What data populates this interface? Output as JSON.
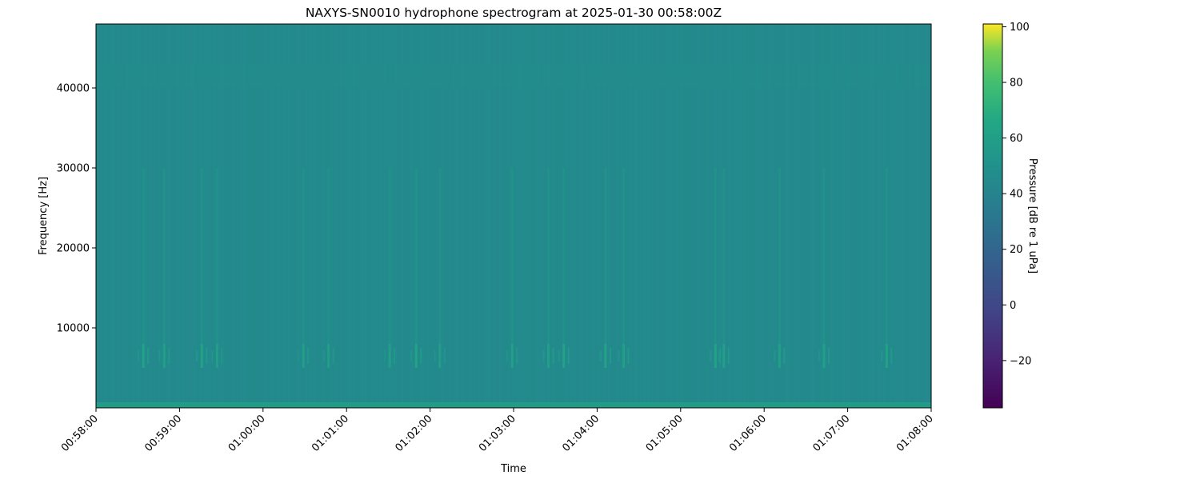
{
  "chart_data": {
    "type": "heatmap",
    "title": "NAXYS-SN0010 hydrophone spectrogram at 2025-01-30 00:58:00Z",
    "xlabel": "Time",
    "ylabel": "Frequency [Hz]",
    "xlim": [
      "00:58:00",
      "01:08:00"
    ],
    "ylim": [
      0,
      48000
    ],
    "x_ticks": [
      "00:58:00",
      "00:59:00",
      "01:00:00",
      "01:01:00",
      "01:02:00",
      "01:03:00",
      "01:04:00",
      "01:05:00",
      "01:06:00",
      "01:07:00",
      "01:08:00"
    ],
    "y_ticks": [
      10000,
      20000,
      30000,
      40000
    ],
    "colormap": "viridis",
    "colorbar": {
      "label": "Pressure [dB re 1 uPa]",
      "range": [
        -37,
        101
      ],
      "ticks": [
        -20,
        0,
        20,
        40,
        60,
        80,
        100
      ]
    },
    "background_level_db": 45,
    "low_frequency_band": {
      "freq_range_hz": [
        0,
        700
      ],
      "level_db": 58
    },
    "upper_band": {
      "freq_range_hz": [
        40000,
        43000
      ],
      "level_db": 47
    },
    "events": [
      {
        "time": "00:58:34",
        "level_db": 62
      },
      {
        "time": "00:58:49",
        "level_db": 61
      },
      {
        "time": "00:59:16",
        "level_db": 62
      },
      {
        "time": "00:59:27",
        "level_db": 60
      },
      {
        "time": "01:00:29",
        "level_db": 60
      },
      {
        "time": "01:00:47",
        "level_db": 59
      },
      {
        "time": "01:01:31",
        "level_db": 60
      },
      {
        "time": "01:01:50",
        "level_db": 62
      },
      {
        "time": "01:02:07",
        "level_db": 59
      },
      {
        "time": "01:02:59",
        "level_db": 60
      },
      {
        "time": "01:03:25",
        "level_db": 61
      },
      {
        "time": "01:03:36",
        "level_db": 62
      },
      {
        "time": "01:04:06",
        "level_db": 62
      },
      {
        "time": "01:04:19",
        "level_db": 61
      },
      {
        "time": "01:05:25",
        "level_db": 62
      },
      {
        "time": "01:05:31",
        "level_db": 61
      },
      {
        "time": "01:06:11",
        "level_db": 61
      },
      {
        "time": "01:06:43",
        "level_db": 60
      },
      {
        "time": "01:07:28",
        "level_db": 62
      }
    ],
    "event_band_hz": [
      5000,
      8000
    ],
    "event_streak_max_hz": 30000,
    "grid": false
  }
}
